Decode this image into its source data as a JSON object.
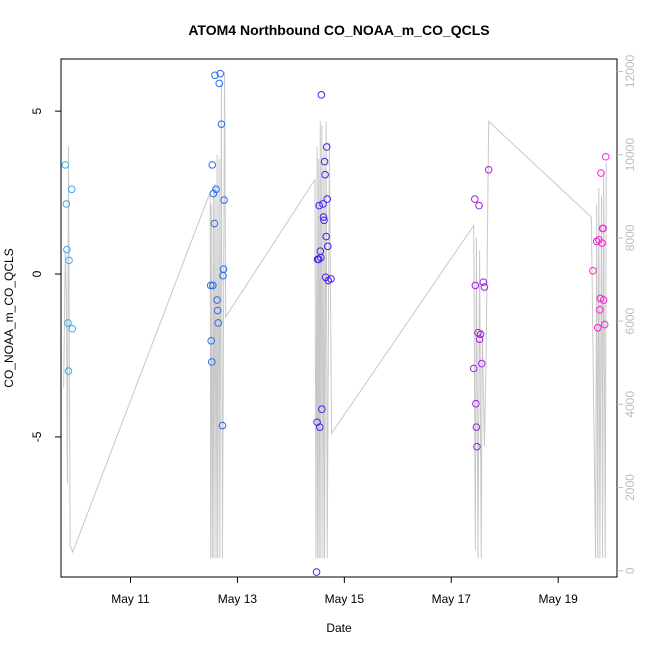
{
  "chart_data": {
    "type": "scatter",
    "title": "ATOM4 Northbound CO_NOAA_m_CO_QCLS",
    "xlabel": "Date",
    "ylabel": "CO_NOAA_m_CO_QCLS",
    "x_unit": "day of May (UTC)",
    "xlim": [
      9.7,
      20.1
    ],
    "ylim": [
      -9.3,
      6.6
    ],
    "y2lim": [
      -150,
      12300
    ],
    "x_ticks": [
      {
        "value": 11,
        "label": "May 11"
      },
      {
        "value": 13,
        "label": "May 13"
      },
      {
        "value": 15,
        "label": "May 15"
      },
      {
        "value": 17,
        "label": "May 17"
      },
      {
        "value": 19,
        "label": "May 19"
      }
    ],
    "y_ticks": [
      {
        "value": -5,
        "label": "-5"
      },
      {
        "value": 0,
        "label": "0"
      },
      {
        "value": 5,
        "label": "5"
      }
    ],
    "y2_ticks": [
      {
        "value": 0,
        "label": "0"
      },
      {
        "value": 2000,
        "label": "2000"
      },
      {
        "value": 4000,
        "label": "4000"
      },
      {
        "value": 6000,
        "label": "6000"
      },
      {
        "value": 8000,
        "label": "8000"
      },
      {
        "value": 10000,
        "label": "10000"
      },
      {
        "value": 12000,
        "label": "12000"
      }
    ],
    "grid": false,
    "legend": "none",
    "colors": {
      "line": "#c8c8c8",
      "gradient": [
        {
          "at": 9.7,
          "color": "#3ab0f0"
        },
        {
          "at": 12.6,
          "color": "#2a6cf2"
        },
        {
          "at": 14.6,
          "color": "#4a1ef0"
        },
        {
          "at": 17.5,
          "color": "#a020e0"
        },
        {
          "at": 19.9,
          "color": "#ff20d8"
        }
      ]
    },
    "series": [
      {
        "type": "scatter",
        "points": [
          [
            9.78,
            3.35
          ],
          [
            9.8,
            2.15
          ],
          [
            9.81,
            0.75
          ],
          [
            9.83,
            -1.5
          ],
          [
            9.84,
            -2.98
          ],
          [
            9.85,
            0.42
          ],
          [
            9.9,
            2.6
          ],
          [
            9.91,
            -1.68
          ],
          [
            12.5,
            -0.35
          ],
          [
            12.51,
            -2.05
          ],
          [
            12.52,
            -2.7
          ],
          [
            12.53,
            3.35
          ],
          [
            12.54,
            -0.35
          ],
          [
            12.55,
            2.47
          ],
          [
            12.57,
            1.55
          ],
          [
            12.58,
            6.1
          ],
          [
            12.6,
            2.6
          ],
          [
            12.62,
            -0.8
          ],
          [
            12.63,
            -1.12
          ],
          [
            12.64,
            -1.5
          ],
          [
            12.66,
            5.85
          ],
          [
            12.68,
            6.15
          ],
          [
            12.7,
            4.6
          ],
          [
            12.72,
            -4.65
          ],
          [
            12.73,
            -0.05
          ],
          [
            12.74,
            0.15
          ],
          [
            12.75,
            2.27
          ],
          [
            14.48,
            -9.15
          ],
          [
            14.49,
            -4.55
          ],
          [
            14.5,
            0.45
          ],
          [
            14.51,
            0.45
          ],
          [
            14.52,
            0.45
          ],
          [
            14.53,
            2.1
          ],
          [
            14.54,
            -4.7
          ],
          [
            14.55,
            0.7
          ],
          [
            14.56,
            0.5
          ],
          [
            14.57,
            5.5
          ],
          [
            14.58,
            -4.15
          ],
          [
            14.6,
            2.15
          ],
          [
            14.61,
            1.75
          ],
          [
            14.62,
            1.65
          ],
          [
            14.63,
            3.45
          ],
          [
            14.64,
            3.05
          ],
          [
            14.65,
            -0.1
          ],
          [
            14.66,
            1.15
          ],
          [
            14.67,
            3.9
          ],
          [
            14.68,
            2.3
          ],
          [
            14.69,
            0.85
          ],
          [
            14.7,
            -0.2
          ],
          [
            14.75,
            -0.15
          ],
          [
            17.42,
            -2.9
          ],
          [
            17.44,
            2.3
          ],
          [
            17.45,
            -0.35
          ],
          [
            17.46,
            -3.98
          ],
          [
            17.47,
            -4.7
          ],
          [
            17.48,
            -5.3
          ],
          [
            17.5,
            -1.8
          ],
          [
            17.52,
            2.1
          ],
          [
            17.53,
            -2.0
          ],
          [
            17.55,
            -1.85
          ],
          [
            17.57,
            -2.75
          ],
          [
            17.6,
            -0.25
          ],
          [
            17.62,
            -0.4
          ],
          [
            17.7,
            3.2
          ],
          [
            19.65,
            0.1
          ],
          [
            19.72,
            1.0
          ],
          [
            19.74,
            -1.65
          ],
          [
            19.76,
            1.05
          ],
          [
            19.78,
            -1.1
          ],
          [
            19.79,
            -0.75
          ],
          [
            19.8,
            3.1
          ],
          [
            19.82,
            0.95
          ],
          [
            19.83,
            1.4
          ],
          [
            19.84,
            1.4
          ],
          [
            19.85,
            -0.8
          ],
          [
            19.87,
            -1.55
          ],
          [
            19.89,
            3.6
          ]
        ]
      },
      {
        "type": "line",
        "axis": "right",
        "name": "",
        "values": [
          [
            9.75,
            4400
          ],
          [
            9.78,
            7700
          ],
          [
            9.8,
            6600
          ],
          [
            9.82,
            2100
          ],
          [
            9.84,
            10200
          ],
          [
            9.87,
            600
          ],
          [
            9.92,
            450
          ],
          [
            12.49,
            9100
          ],
          [
            12.5,
            300
          ],
          [
            12.51,
            8800
          ],
          [
            12.53,
            300
          ],
          [
            12.55,
            9200
          ],
          [
            12.56,
            300
          ],
          [
            12.58,
            9300
          ],
          [
            12.6,
            300
          ],
          [
            12.62,
            10000
          ],
          [
            12.63,
            300
          ],
          [
            12.66,
            9900
          ],
          [
            12.67,
            300
          ],
          [
            12.7,
            11700
          ],
          [
            12.72,
            300
          ],
          [
            12.76,
            12000
          ],
          [
            12.78,
            6100
          ],
          [
            14.45,
            9400
          ],
          [
            14.47,
            300
          ],
          [
            14.49,
            10200
          ],
          [
            14.5,
            300
          ],
          [
            14.52,
            9900
          ],
          [
            14.53,
            300
          ],
          [
            14.55,
            10800
          ],
          [
            14.56,
            300
          ],
          [
            14.58,
            10700
          ],
          [
            14.6,
            300
          ],
          [
            14.62,
            10200
          ],
          [
            14.63,
            300
          ],
          [
            14.66,
            10800
          ],
          [
            14.68,
            300
          ],
          [
            14.72,
            10300
          ],
          [
            14.76,
            3300
          ],
          [
            17.42,
            8300
          ],
          [
            17.45,
            500
          ],
          [
            17.47,
            8000
          ],
          [
            17.5,
            300
          ],
          [
            17.53,
            7700
          ],
          [
            17.56,
            300
          ],
          [
            17.58,
            5800
          ],
          [
            17.62,
            3000
          ],
          [
            17.65,
            5000
          ],
          [
            17.7,
            10800
          ],
          [
            19.62,
            8500
          ],
          [
            19.7,
            300
          ],
          [
            19.72,
            8800
          ],
          [
            19.74,
            300
          ],
          [
            19.76,
            9200
          ],
          [
            19.78,
            300
          ],
          [
            19.81,
            9000
          ],
          [
            19.83,
            300
          ],
          [
            19.85,
            9600
          ],
          [
            19.88,
            300
          ],
          [
            19.9,
            9800
          ]
        ]
      }
    ]
  }
}
